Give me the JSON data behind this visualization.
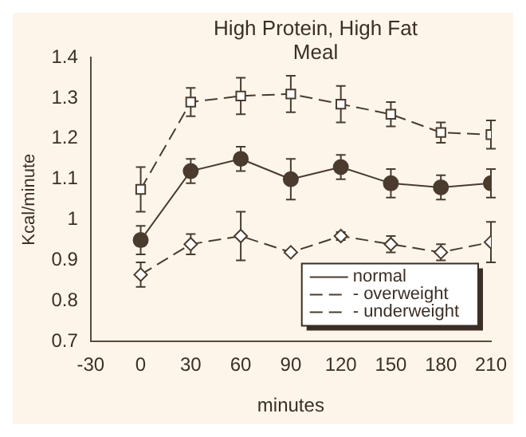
{
  "chart_data": {
    "type": "line",
    "title": "High Protein, High Fat Meal",
    "xlabel": "minutes",
    "ylabel": "Kcal/minute",
    "x": [
      0,
      30,
      60,
      90,
      120,
      150,
      180,
      210
    ],
    "series": [
      {
        "name": "normal",
        "color": "#4a3b2e",
        "marker": "circle",
        "line_style": "solid",
        "values": [
          0.95,
          1.12,
          1.15,
          1.1,
          1.13,
          1.09,
          1.08,
          1.09
        ],
        "errors": [
          0.035,
          0.03,
          0.03,
          0.05,
          0.03,
          0.035,
          0.03,
          0.035
        ]
      },
      {
        "name": "- overweight",
        "color": "#4a3b2e",
        "marker": "square",
        "line_style": "dashed",
        "values": [
          1.075,
          1.29,
          1.305,
          1.31,
          1.285,
          1.26,
          1.215,
          1.21
        ],
        "errors": [
          0.055,
          0.035,
          0.045,
          0.045,
          0.045,
          0.03,
          0.025,
          0.035
        ]
      },
      {
        "name": "- underweight",
        "color": "#4a3b2e",
        "marker": "diamond",
        "line_style": "dashed",
        "values": [
          0.865,
          0.94,
          0.96,
          0.92,
          0.96,
          0.94,
          0.92,
          0.945
        ],
        "errors": [
          0.03,
          0.025,
          0.06,
          0.005,
          0.01,
          0.02,
          0.02,
          0.05
        ]
      }
    ],
    "xlim": [
      -30,
      210
    ],
    "xticks": [
      -30,
      0,
      30,
      60,
      90,
      120,
      150,
      180,
      210
    ],
    "ylim": [
      0.7,
      1.4
    ],
    "yticks": [
      0.7,
      0.8,
      0.9,
      1,
      1.1,
      1.2,
      1.3,
      1.4
    ],
    "grid": false,
    "legend": "bottom right"
  }
}
